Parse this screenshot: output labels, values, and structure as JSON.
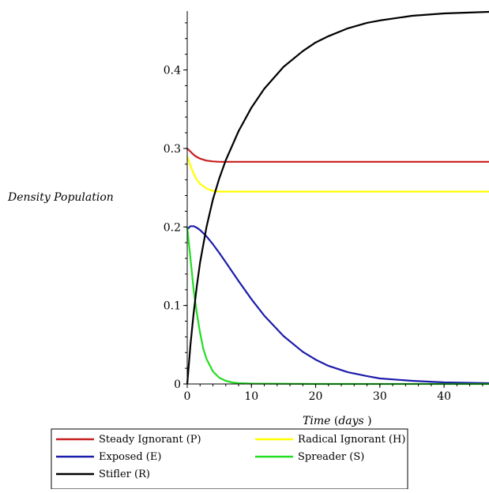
{
  "chart_data": {
    "type": "line",
    "title": "",
    "xlabel": "Time",
    "xlabel_unit": "days",
    "ylabel": "Density Population",
    "xlim": [
      0,
      47
    ],
    "ylim": [
      0,
      0.475
    ],
    "xticks": [
      0,
      10,
      20,
      30,
      40
    ],
    "yticks": [
      0,
      0.1,
      0.2,
      0.3,
      0.4
    ],
    "grid": false,
    "legend_position": "bottom",
    "series": [
      {
        "name": "Steady Ignorant (P)",
        "color": "#c81e1e",
        "x": [
          0,
          0.5,
          1,
          1.5,
          2,
          3,
          4,
          5,
          7,
          10,
          20,
          30,
          40,
          47
        ],
        "y": [
          0.3,
          0.296,
          0.292,
          0.289,
          0.287,
          0.2845,
          0.2835,
          0.283,
          0.283,
          0.283,
          0.283,
          0.283,
          0.283,
          0.283
        ]
      },
      {
        "name": "Radical Ignorant (H)",
        "color": "#ffff00",
        "x": [
          0,
          0.5,
          1,
          1.5,
          2,
          3,
          4,
          5,
          7,
          10,
          20,
          30,
          40,
          47
        ],
        "y": [
          0.29,
          0.278,
          0.268,
          0.26,
          0.255,
          0.249,
          0.246,
          0.245,
          0.245,
          0.245,
          0.245,
          0.245,
          0.245,
          0.245
        ]
      },
      {
        "name": "Exposed (E)",
        "color": "#1c1caa",
        "x": [
          0,
          0.5,
          1,
          1.5,
          2,
          3,
          4,
          5,
          6,
          8,
          10,
          12,
          15,
          18,
          20,
          22,
          25,
          28,
          30,
          35,
          40,
          47
        ],
        "y": [
          0.197,
          0.201,
          0.201,
          0.199,
          0.196,
          0.188,
          0.178,
          0.167,
          0.155,
          0.131,
          0.108,
          0.087,
          0.061,
          0.041,
          0.031,
          0.023,
          0.015,
          0.01,
          0.007,
          0.004,
          0.002,
          0.001
        ]
      },
      {
        "name": "Spreader (S)",
        "color": "#22dd22",
        "x": [
          0,
          0.25,
          0.5,
          1,
          1.5,
          2,
          2.5,
          3,
          4,
          5,
          6,
          7,
          8,
          10,
          20,
          30,
          40,
          47
        ],
        "y": [
          0.2,
          0.18,
          0.16,
          0.12,
          0.09,
          0.065,
          0.045,
          0.032,
          0.016,
          0.008,
          0.004,
          0.002,
          0.001,
          0.0005,
          0.0,
          0.0,
          0.0,
          0.0
        ]
      },
      {
        "name": "Stifler (R)",
        "color": "#000000",
        "x": [
          0,
          0.5,
          1,
          1.5,
          2,
          3,
          4,
          5,
          6,
          8,
          10,
          12,
          15,
          18,
          20,
          22,
          25,
          28,
          30,
          35,
          40,
          47
        ],
        "y": [
          0.0,
          0.05,
          0.09,
          0.125,
          0.155,
          0.2,
          0.235,
          0.262,
          0.285,
          0.322,
          0.352,
          0.376,
          0.404,
          0.424,
          0.435,
          0.443,
          0.453,
          0.46,
          0.463,
          0.469,
          0.472,
          0.474
        ]
      }
    ]
  }
}
